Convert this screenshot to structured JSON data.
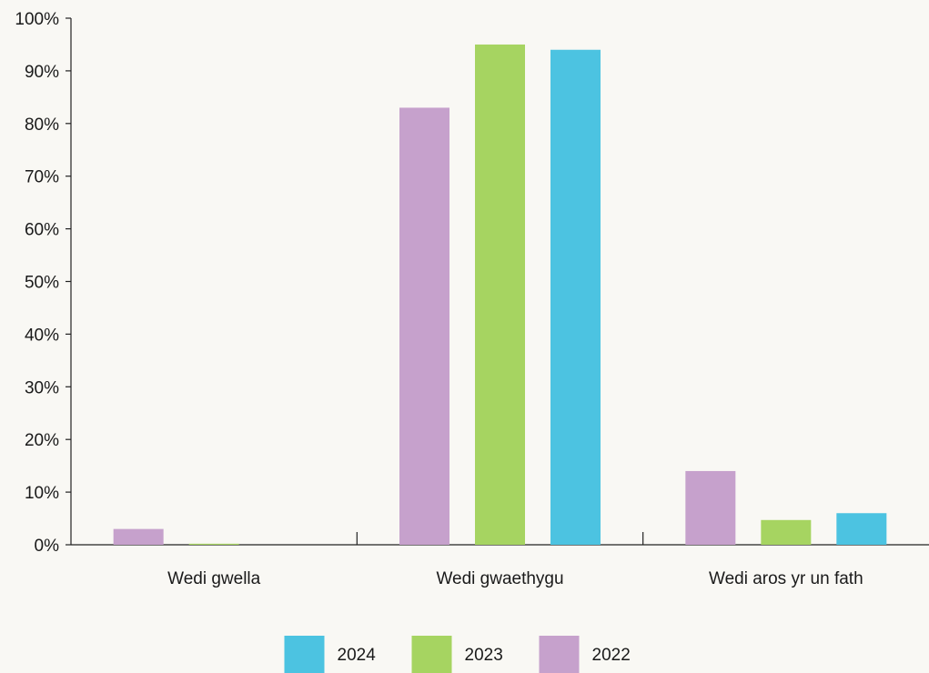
{
  "chart_data": {
    "type": "bar",
    "categories": [
      "Wedi gwella",
      "Wedi gwaethygu",
      "Wedi aros yr un fath"
    ],
    "series": [
      {
        "name": "2022",
        "color": "#c6a1cc",
        "values": [
          3,
          83,
          14
        ]
      },
      {
        "name": "2023",
        "color": "#a6d461",
        "values": [
          0.2,
          95,
          4.7
        ]
      },
      {
        "name": "2024",
        "color": "#4cc3e1",
        "values": [
          0,
          94,
          6
        ]
      }
    ],
    "ylim": [
      0,
      100
    ],
    "yticks": [
      "0%",
      "10%",
      "20%",
      "30%",
      "40%",
      "50%",
      "60%",
      "70%",
      "80%",
      "90%",
      "100%"
    ],
    "grid": false,
    "legend_position": "bottom",
    "legend_order": [
      "2024",
      "2023",
      "2022"
    ]
  }
}
